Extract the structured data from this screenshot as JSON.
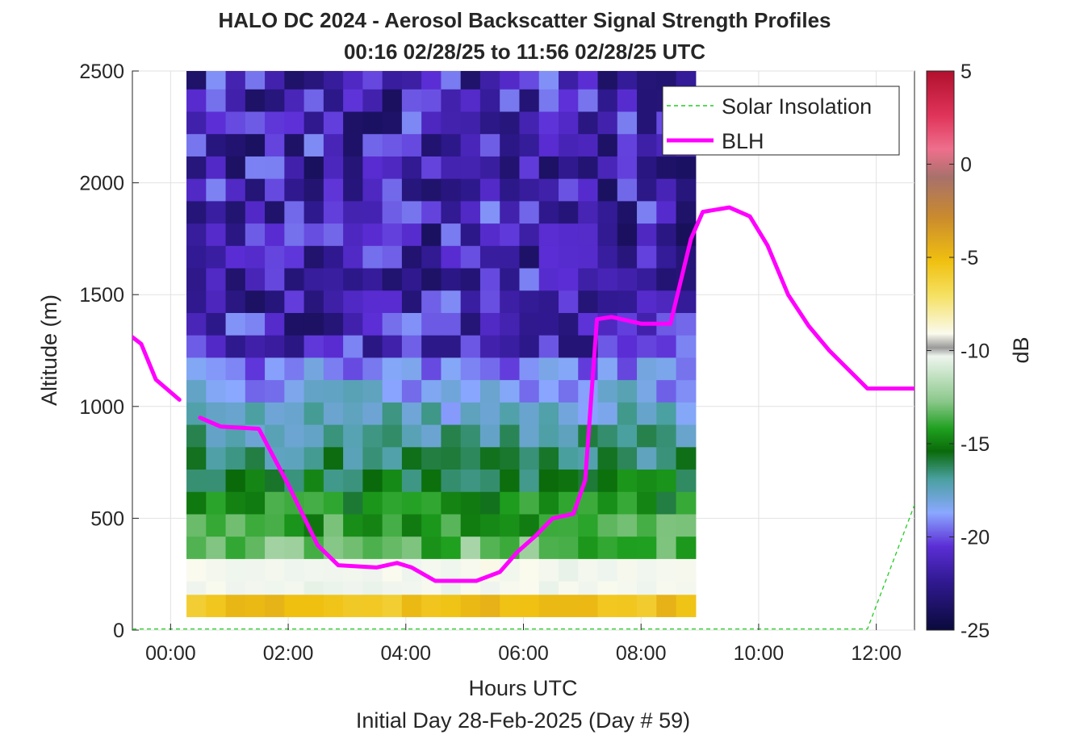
{
  "chart_data": {
    "type": "heatmap",
    "title": "HALO DC 2024 - Aerosol Backscatter Signal Strength Profiles",
    "subtitle": "00:16 02/28/25 to 11:56 02/28/25  UTC",
    "xlabel": "Hours UTC",
    "footer": "Initial Day 28-Feb-2025 (Day # 59)",
    "ylabel": "Altitude (m)",
    "x_unit": "hours UTC",
    "xlim": [
      -0.65,
      12.65
    ],
    "ylim": [
      0,
      2500
    ],
    "x_ticks": [
      0,
      2,
      4,
      6,
      8,
      10,
      12
    ],
    "x_tick_labels": [
      "00:00",
      "02:00",
      "04:00",
      "06:00",
      "08:00",
      "10:00",
      "12:00"
    ],
    "y_ticks": [
      0,
      500,
      1000,
      1500,
      2000,
      2500
    ],
    "y_tick_labels": [
      "0",
      "500",
      "1000",
      "1500",
      "2000",
      "2500"
    ],
    "colorbar": {
      "label": "dB",
      "range": [
        -25,
        5
      ],
      "ticks": [
        5,
        0,
        -5,
        -10,
        -15,
        -20,
        -25
      ],
      "tick_labels": [
        "5",
        "0",
        "-5",
        "-10",
        "-15",
        "-20",
        "-25"
      ]
    },
    "grid": true,
    "legend_position": "top-right",
    "heatmap_grid": {
      "x_start": 0.27,
      "x_step": 0.333,
      "columns": 26,
      "altitudes_m": [
        110,
        210,
        270,
        370,
        470,
        570,
        670,
        770,
        870,
        970,
        1070,
        1170,
        1270,
        1370,
        1470,
        1570,
        1670,
        1770,
        1870,
        1970,
        2070,
        2170,
        2270,
        2370,
        2470
      ],
      "cell_height_m": 100
    },
    "series": [
      {
        "name": "Solar Insolation",
        "style": "dashed",
        "color": "#22cc22",
        "x": [
          -0.65,
          11.85,
          12.65
        ],
        "y": [
          5,
          5,
          560
        ]
      },
      {
        "name": "BLH",
        "style": "solid",
        "color": "#ff00ff",
        "segments": [
          {
            "x": [
              -0.65,
              -0.5,
              -0.25,
              0.15
            ],
            "y": [
              1310,
              1280,
              1120,
              1030
            ]
          },
          {
            "x": [
              0.5,
              0.85,
              1.5,
              2.0,
              2.5,
              2.85,
              3.5,
              3.85,
              4.1,
              4.5,
              5.2,
              5.6,
              5.9,
              6.2,
              6.5,
              6.85,
              7.05,
              7.25,
              7.5,
              8.0,
              8.5,
              8.85,
              9.05,
              9.5,
              9.85,
              10.15,
              10.5,
              10.85,
              11.2,
              11.85,
              12.1,
              12.65
            ],
            "y": [
              950,
              910,
              900,
              650,
              380,
              290,
              280,
              300,
              280,
              220,
              220,
              260,
              350,
              420,
              500,
              520,
              670,
              1390,
              1400,
              1370,
              1370,
              1750,
              1870,
              1890,
              1850,
              1720,
              1500,
              1360,
              1250,
              1080,
              1080,
              1080
            ]
          }
        ]
      }
    ]
  }
}
